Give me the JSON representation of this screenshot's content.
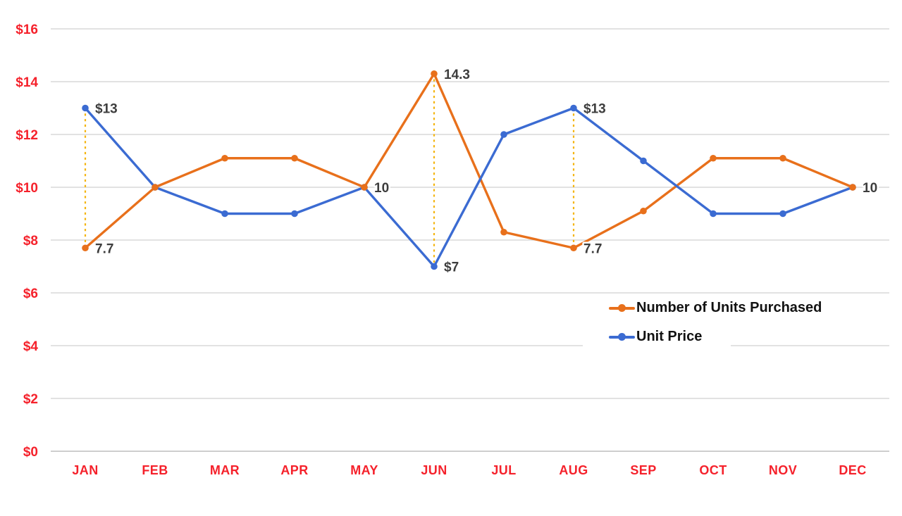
{
  "chart_data": {
    "type": "line",
    "title": "",
    "categories": [
      "JAN",
      "FEB",
      "MAR",
      "APR",
      "MAY",
      "JUN",
      "JUL",
      "AUG",
      "SEP",
      "OCT",
      "NOV",
      "DEC"
    ],
    "series": [
      {
        "name": "Number of Units Purchased",
        "color": "#e8701b",
        "values": [
          7.7,
          10,
          11.1,
          11.1,
          10,
          14.3,
          8.3,
          7.7,
          9.1,
          11.1,
          11.1,
          10
        ]
      },
      {
        "name": "Unit Price",
        "color": "#3b6bd2",
        "values": [
          13,
          10,
          9,
          9,
          10,
          7,
          12,
          13,
          11,
          9,
          9,
          10
        ]
      }
    ],
    "y_axis": {
      "min": 0,
      "max": 16,
      "step": 2,
      "ticks": [
        "$0",
        "$2",
        "$4",
        "$6",
        "$8",
        "$10",
        "$12",
        "$14",
        "$16"
      ],
      "label_color": "#f5212b"
    },
    "x_axis": {
      "label_color": "#f5212b"
    },
    "grid": true,
    "gridline_color": "#d9d9d9",
    "axis_line_color": "#c7c7c7",
    "data_label_color": "#3d3d3d",
    "annotations": [
      {
        "category": "JAN",
        "series": 1,
        "text": "$13"
      },
      {
        "category": "JAN",
        "series": 0,
        "text": "7.7"
      },
      {
        "category": "MAY",
        "series": 0,
        "text": "10"
      },
      {
        "category": "JUN",
        "series": 0,
        "text": "14.3"
      },
      {
        "category": "JUN",
        "series": 1,
        "text": "$7"
      },
      {
        "category": "AUG",
        "series": 1,
        "text": "$13"
      },
      {
        "category": "AUG",
        "series": 0,
        "text": "7.7"
      },
      {
        "category": "DEC",
        "series": 0,
        "text": "10"
      }
    ],
    "connectors": {
      "categories": [
        "JAN",
        "JUN",
        "AUG"
      ],
      "color": "#f4b40e",
      "style": "dashed"
    },
    "legend": {
      "position": "inside-right"
    }
  }
}
